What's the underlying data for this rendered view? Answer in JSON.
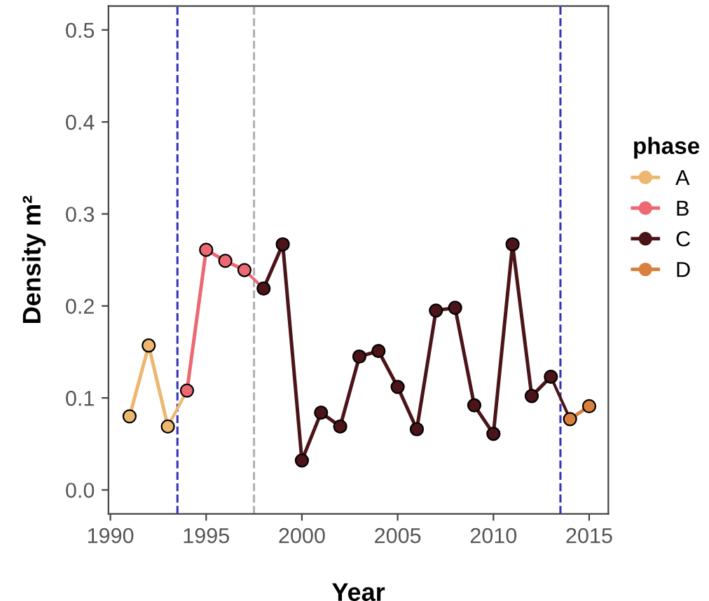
{
  "chart_data": {
    "type": "line",
    "xlabel": "Year",
    "ylabel": "Density m²",
    "legend_title": "phase",
    "xlim": [
      1989.9,
      2016
    ],
    "ylim": [
      -0.026,
      0.526
    ],
    "xticks": [
      1990,
      1995,
      2000,
      2005,
      2010,
      2015
    ],
    "yticks": [
      {
        "value": 0,
        "label": "0.0"
      },
      0.1,
      0.2,
      0.3,
      0.4,
      0.5
    ],
    "series": [
      {
        "name": "A",
        "color": "#edb76f",
        "x": [
          1991,
          1992,
          1993
        ],
        "values": [
          0.08,
          0.157,
          0.069
        ]
      },
      {
        "name": "B",
        "color": "#ec6872",
        "x": [
          1994,
          1995,
          1996,
          1997
        ],
        "values": [
          0.108,
          0.261,
          0.249,
          0.239
        ]
      },
      {
        "name": "C",
        "color": "#4a1418",
        "x": [
          1998,
          1999,
          2000,
          2001,
          2002,
          2003,
          2004,
          2005,
          2006,
          2007,
          2008,
          2009,
          2010,
          2011,
          2012,
          2013
        ],
        "values": [
          0.219,
          0.267,
          0.032,
          0.084,
          0.069,
          0.145,
          0.151,
          0.112,
          0.066,
          0.195,
          0.198,
          0.092,
          0.061,
          0.267,
          0.102,
          0.123
        ]
      },
      {
        "name": "D",
        "color": "#d9803f",
        "x": [
          2014,
          2015
        ],
        "values": [
          0.077,
          0.091
        ]
      },
      {
        "color": "#edb76f",
        "marker": "none",
        "x": [
          1993,
          1994
        ],
        "values": [
          0.069,
          0.108
        ]
      },
      {
        "color": "#ec6872",
        "marker": "none",
        "x": [
          1997,
          1998
        ],
        "values": [
          0.239,
          0.219
        ]
      },
      {
        "color": "#4a1418",
        "marker": "none",
        "x": [
          2013,
          2014
        ],
        "values": [
          0.123,
          0.077
        ]
      }
    ],
    "ref_lines": [
      {
        "axis": "x",
        "value": 1993.5,
        "color": "#3333bb",
        "line_style": "dashed"
      },
      {
        "axis": "x",
        "value": 1997.5,
        "color": "#b0b0b0",
        "line_style": "dashed"
      },
      {
        "axis": "x",
        "value": 2013.5,
        "color": "#3333bb",
        "line_style": "dashed"
      }
    ],
    "marker": "circle",
    "line_style": "solid",
    "grid": false,
    "legend": "right"
  }
}
